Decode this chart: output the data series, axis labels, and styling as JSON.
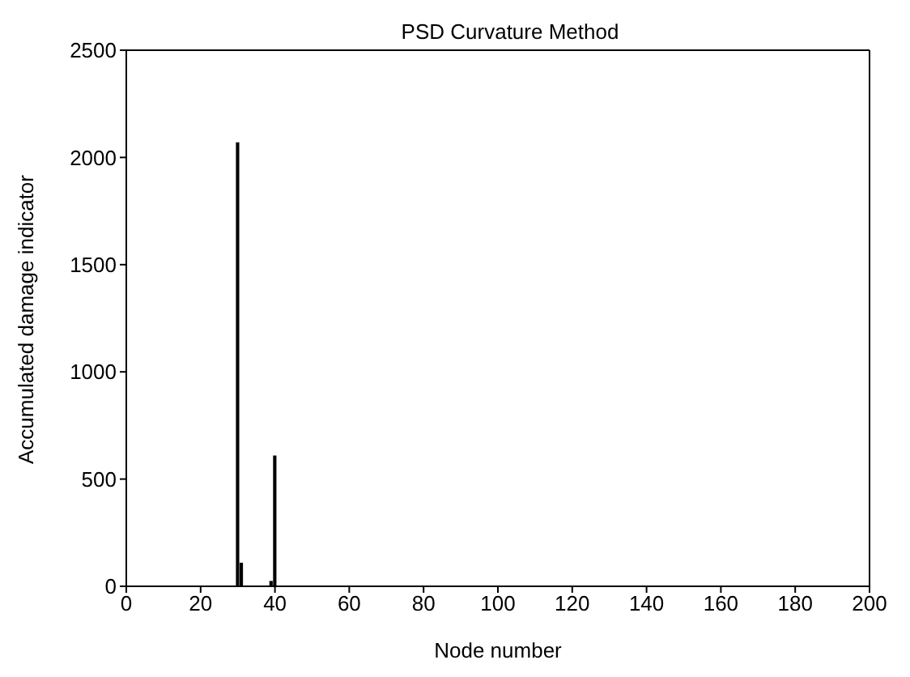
{
  "chart_data": {
    "type": "bar",
    "title": "PSD Curvature Method",
    "xlabel": "Node number",
    "ylabel": "Accumulated damage indicator",
    "x": [
      30,
      31,
      39,
      40
    ],
    "values": [
      2070,
      110,
      25,
      610
    ],
    "color": "#000000",
    "xlim": [
      0,
      200
    ],
    "xticks": [
      0,
      20,
      40,
      60,
      80,
      100,
      120,
      140,
      160,
      180,
      200
    ],
    "ylim": [
      0,
      2500
    ],
    "yticks": [
      0,
      500,
      1000,
      1500,
      2000,
      2500
    ],
    "grid": false
  }
}
